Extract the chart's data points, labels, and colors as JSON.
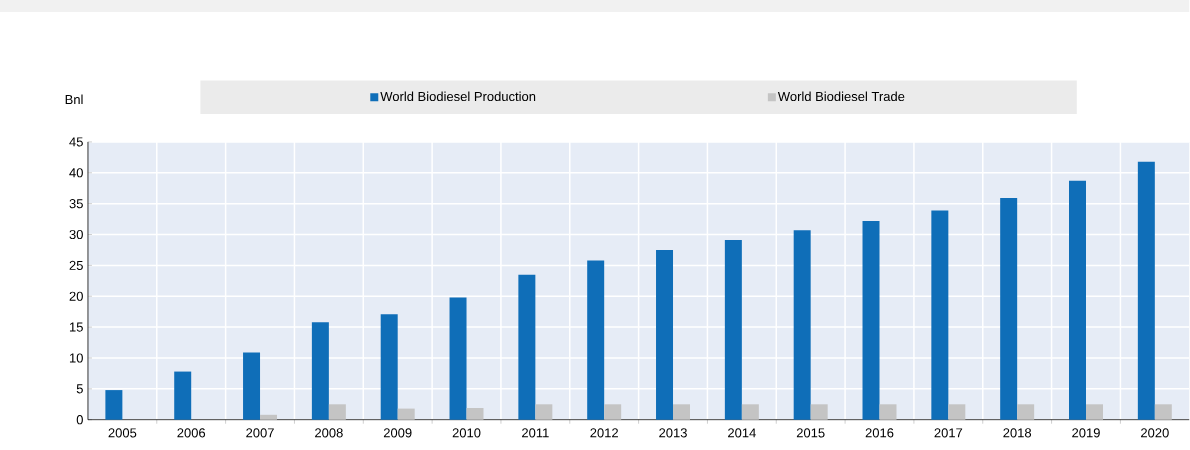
{
  "chart_data": {
    "type": "bar",
    "ylabel": "Bnl",
    "categories": [
      "2005",
      "2006",
      "2007",
      "2008",
      "2009",
      "2010",
      "2011",
      "2012",
      "2013",
      "2014",
      "2015",
      "2016",
      "2017",
      "2018",
      "2019",
      "2020"
    ],
    "series": [
      {
        "name": "World Biodiesel Production",
        "color": "#0f6eb8",
        "values": [
          4.8,
          7.8,
          10.9,
          15.8,
          17.1,
          19.8,
          23.5,
          25.8,
          27.5,
          29.1,
          30.7,
          32.2,
          33.9,
          35.9,
          38.7,
          41.8
        ]
      },
      {
        "name": "World Biodiesel Trade",
        "color": "#c4c4c4",
        "values": [
          0,
          0,
          0.8,
          2.5,
          1.8,
          1.9,
          2.5,
          2.5,
          2.5,
          2.5,
          2.5,
          2.5,
          2.5,
          2.5,
          2.5,
          2.5
        ]
      }
    ],
    "ylim": [
      0,
      45
    ],
    "yticks": [
      0,
      5,
      10,
      15,
      20,
      25,
      30,
      35,
      40,
      45
    ],
    "grid": true,
    "legend": "top"
  }
}
